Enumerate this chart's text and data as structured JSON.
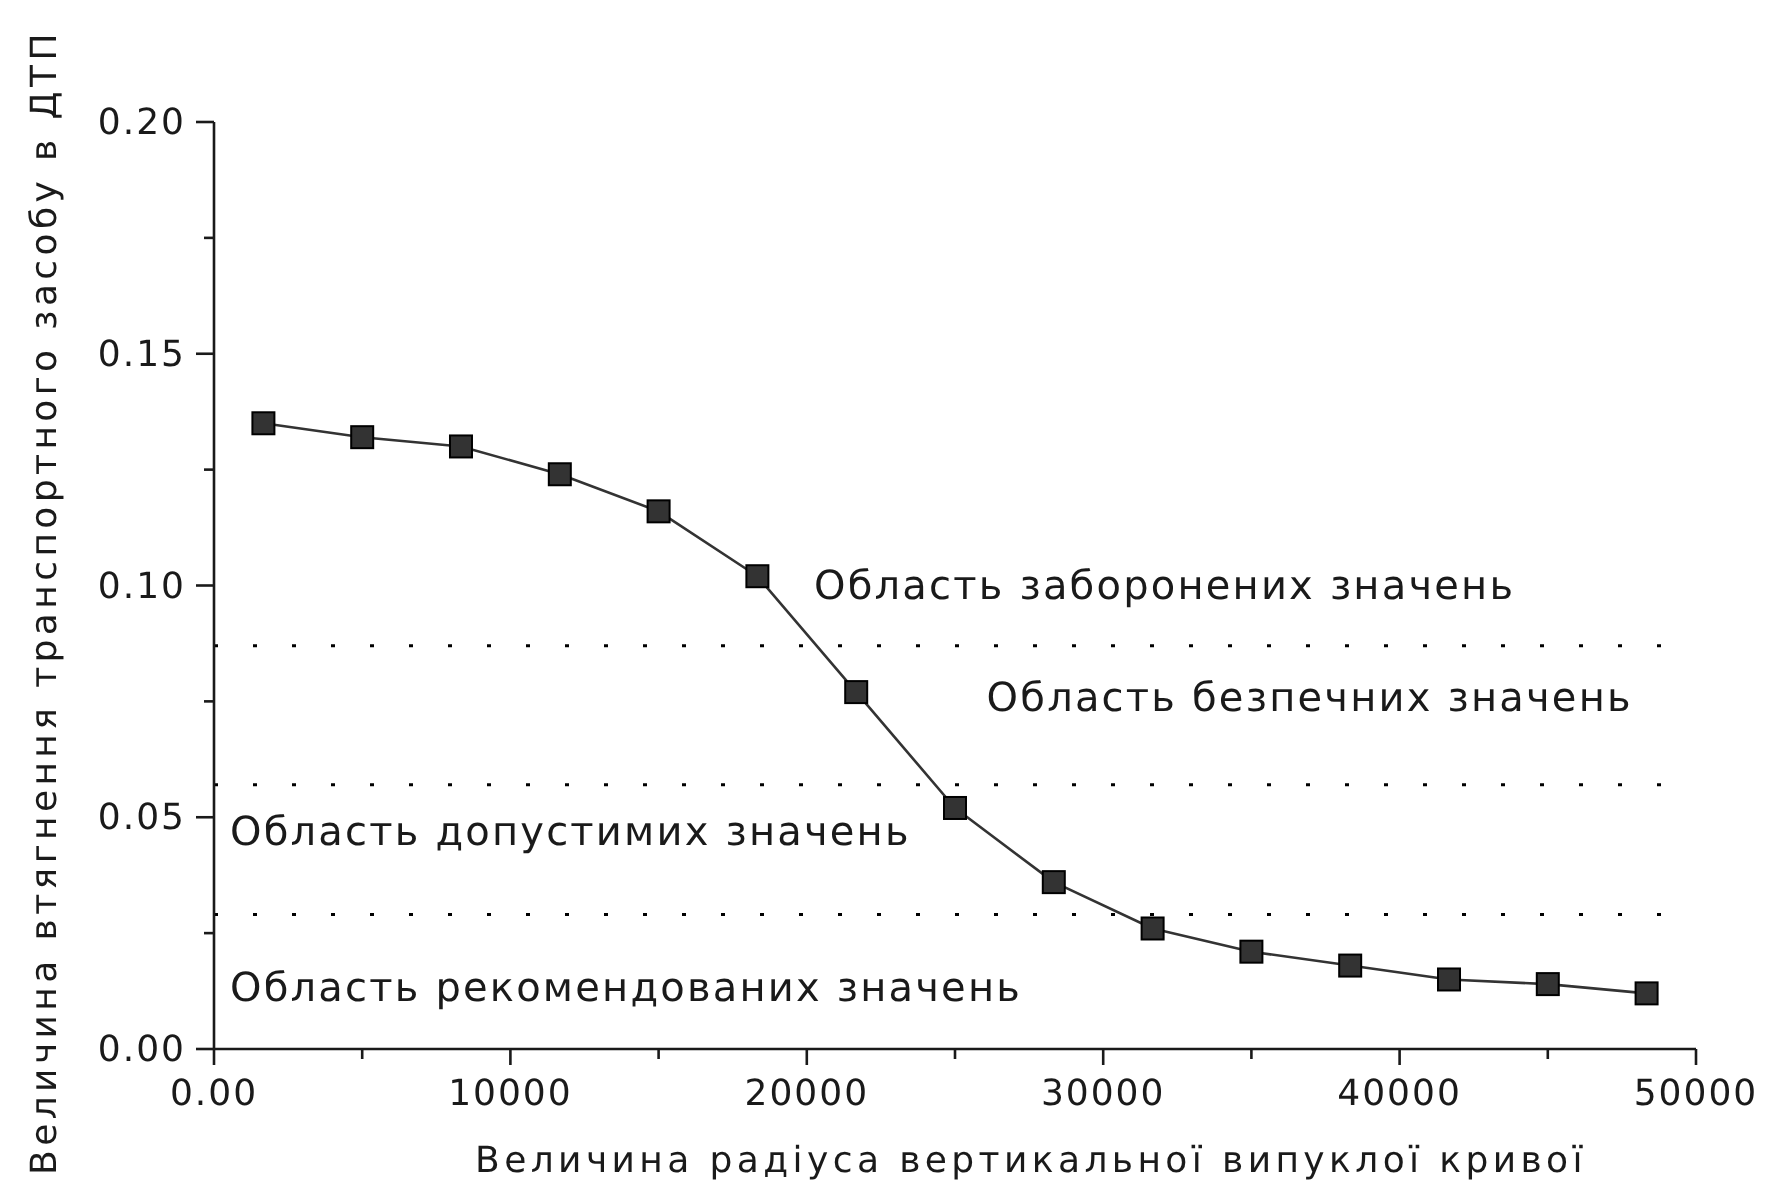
{
  "chart_data": {
    "type": "line",
    "xlabel": "Величина радіуса вертикальної випуклої кривої",
    "ylabel": "Величина втягнення транспортного засобу в ДТП",
    "x": [
      1667,
      5000,
      8333,
      11667,
      15000,
      18333,
      21667,
      25000,
      28333,
      31667,
      35000,
      38333,
      41667,
      45000,
      48333
    ],
    "values": [
      0.135,
      0.132,
      0.13,
      0.124,
      0.116,
      0.102,
      0.077,
      0.052,
      0.036,
      0.026,
      0.021,
      0.018,
      0.015,
      0.014,
      0.012
    ],
    "color": "#333333",
    "marker": "square",
    "line_style": "solid",
    "xlim": [
      0,
      50000
    ],
    "xticks": [
      {
        "value": 0,
        "label": "0.00"
      },
      {
        "value": 5000,
        "label": null
      },
      10000,
      {
        "value": 15000,
        "label": null
      },
      20000,
      {
        "value": 25000,
        "label": null
      },
      30000,
      {
        "value": 35000,
        "label": null
      },
      40000,
      {
        "value": 45000,
        "label": null
      },
      50000
    ],
    "ylim": [
      0,
      0.2
    ],
    "yticks": [
      {
        "value": 0,
        "label": "0.00"
      },
      {
        "value": 0.025,
        "label": null
      },
      {
        "value": 0.05,
        "label": "0.05"
      },
      {
        "value": 0.075,
        "label": null
      },
      {
        "value": 0.1,
        "label": "0.10"
      },
      {
        "value": 0.125,
        "label": null
      },
      {
        "value": 0.15,
        "label": "0.15"
      },
      {
        "value": 0.175,
        "label": null
      },
      {
        "value": 0.2,
        "label": "0.20"
      }
    ],
    "ref_lines": [
      {
        "axis": "y",
        "value": 0.087,
        "line_style": "dotted",
        "color": "#000000"
      },
      {
        "axis": "y",
        "value": 0.057,
        "line_style": "dotted",
        "color": "#000000"
      },
      {
        "axis": "y",
        "value": 0.029,
        "line_style": "dotted",
        "color": "#000000"
      }
    ],
    "annotations": [
      "Область заборонених значень",
      "Область безпечних значень",
      "Область допустимих значень",
      "Область рекомендованих значень"
    ]
  }
}
